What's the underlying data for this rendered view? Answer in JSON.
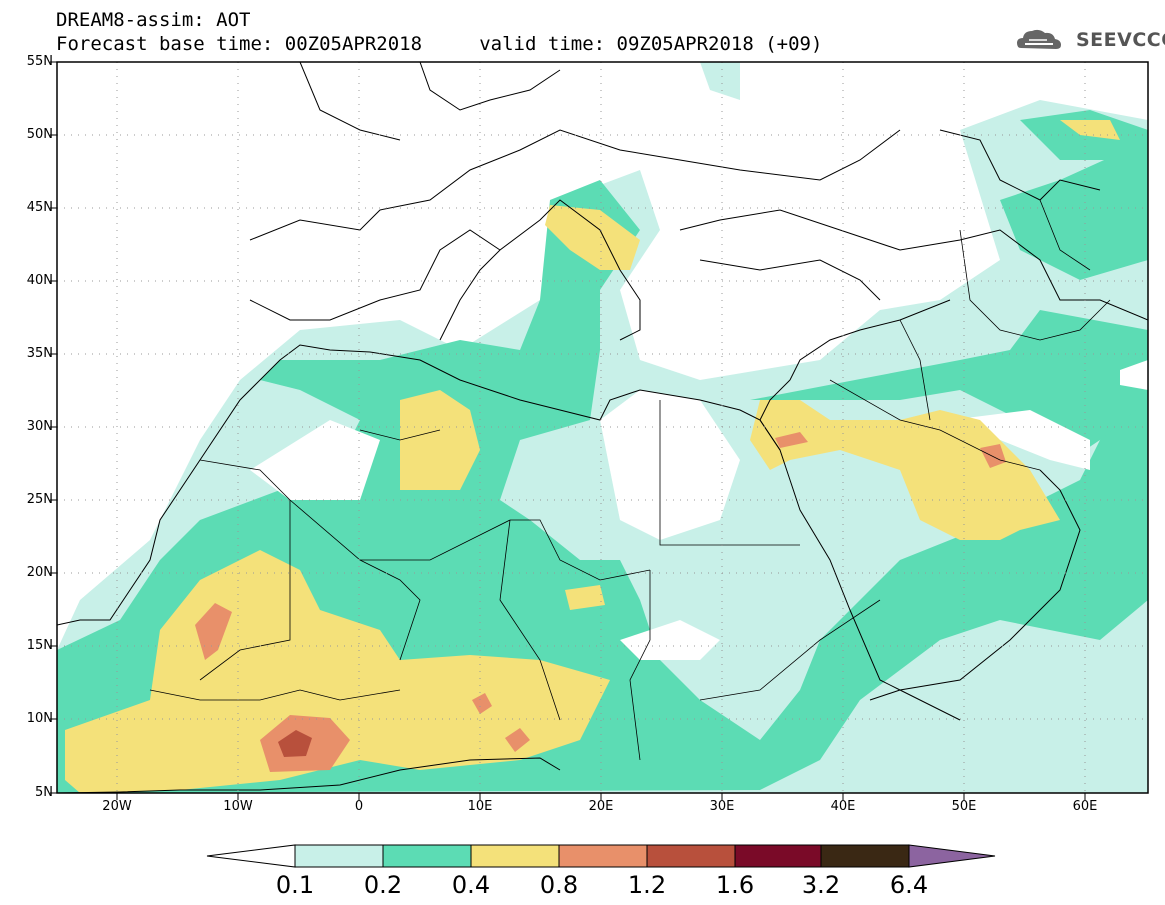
{
  "header": {
    "title_line1": "DREAM8-assim: AOT",
    "title_line2": "Forecast base time: 00Z05APR2018     valid time: 09Z05APR2018 (+09)",
    "logo_text": "SEEVCCC"
  },
  "axes": {
    "lat_labels": [
      "55N",
      "50N",
      "45N",
      "40N",
      "35N",
      "30N",
      "25N",
      "20N",
      "15N",
      "10N",
      "5N"
    ],
    "lon_labels": [
      "20W",
      "10W",
      "0",
      "10E",
      "20E",
      "30E",
      "40E",
      "50E",
      "60E"
    ]
  },
  "colorbar": {
    "labels": [
      "0.1",
      "0.2",
      "0.4",
      "0.8",
      "1.2",
      "1.6",
      "3.2",
      "6.4"
    ],
    "colors": [
      "#c8f0e8",
      "#5cdcb4",
      "#f4e17a",
      "#e8906a",
      "#b8503c",
      "#7a0a28",
      "#3a2814",
      "#8c64a0"
    ]
  },
  "map_colors": {
    "light": "#c8f0e8",
    "green": "#5cdcb4",
    "yellow": "#f4e17a",
    "orange": "#e8906a",
    "red": "#b8503c",
    "dark": "#8a3a2c"
  }
}
